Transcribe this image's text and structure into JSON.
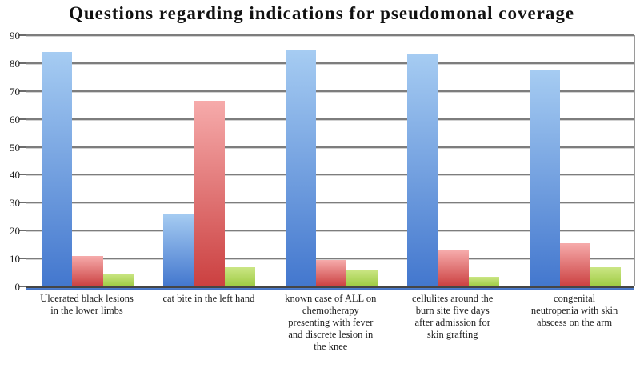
{
  "chart_data": {
    "type": "bar",
    "title": "Questions regarding indications for pseudomonal coverage",
    "categories": [
      "Ulcerated black lesions in the lower limbs",
      "cat bite in the left hand",
      "known case of ALL on chemotherapy presenting with fever and discrete lesion in the knee",
      "cellulites around the burn site five days after admission for skin grafting",
      "congenital neutropenia with skin abscess on the arm"
    ],
    "category_lines": [
      "Ulcerated black lesions\nin the lower limbs",
      "cat bite in the left hand",
      "known case of ALL on\nchemotherapy\npresenting with fever\nand discrete lesion in\nthe knee",
      "cellulites around the\nburn site five days\nafter admission for\nskin grafting",
      "congenital\nneutropenia with skin\nabscess on the arm"
    ],
    "series": [
      {
        "name": "series-1-blue",
        "color_top": "#a6ccf2",
        "color_bottom": "#4377ce",
        "values": [
          84,
          26,
          84.5,
          83.5,
          77.5
        ]
      },
      {
        "name": "series-2-red",
        "color_top": "#f6abab",
        "color_bottom": "#cb4040",
        "values": [
          11,
          66.5,
          9.5,
          13,
          15.5
        ]
      },
      {
        "name": "series-3-green",
        "color_top": "#cbe685",
        "color_bottom": "#9ecb43",
        "values": [
          4.7,
          7,
          6,
          3.5,
          7
        ]
      }
    ],
    "ylim": [
      0,
      90
    ],
    "yticks": [
      0,
      10,
      20,
      30,
      40,
      50,
      60,
      70,
      80,
      90
    ],
    "grid": true,
    "legend_position": "none",
    "colors": {
      "gridline": "#7d7d7d",
      "axis": "#454545",
      "baseline_strip": "#4f81d0",
      "text": "#1c1c1c"
    }
  }
}
